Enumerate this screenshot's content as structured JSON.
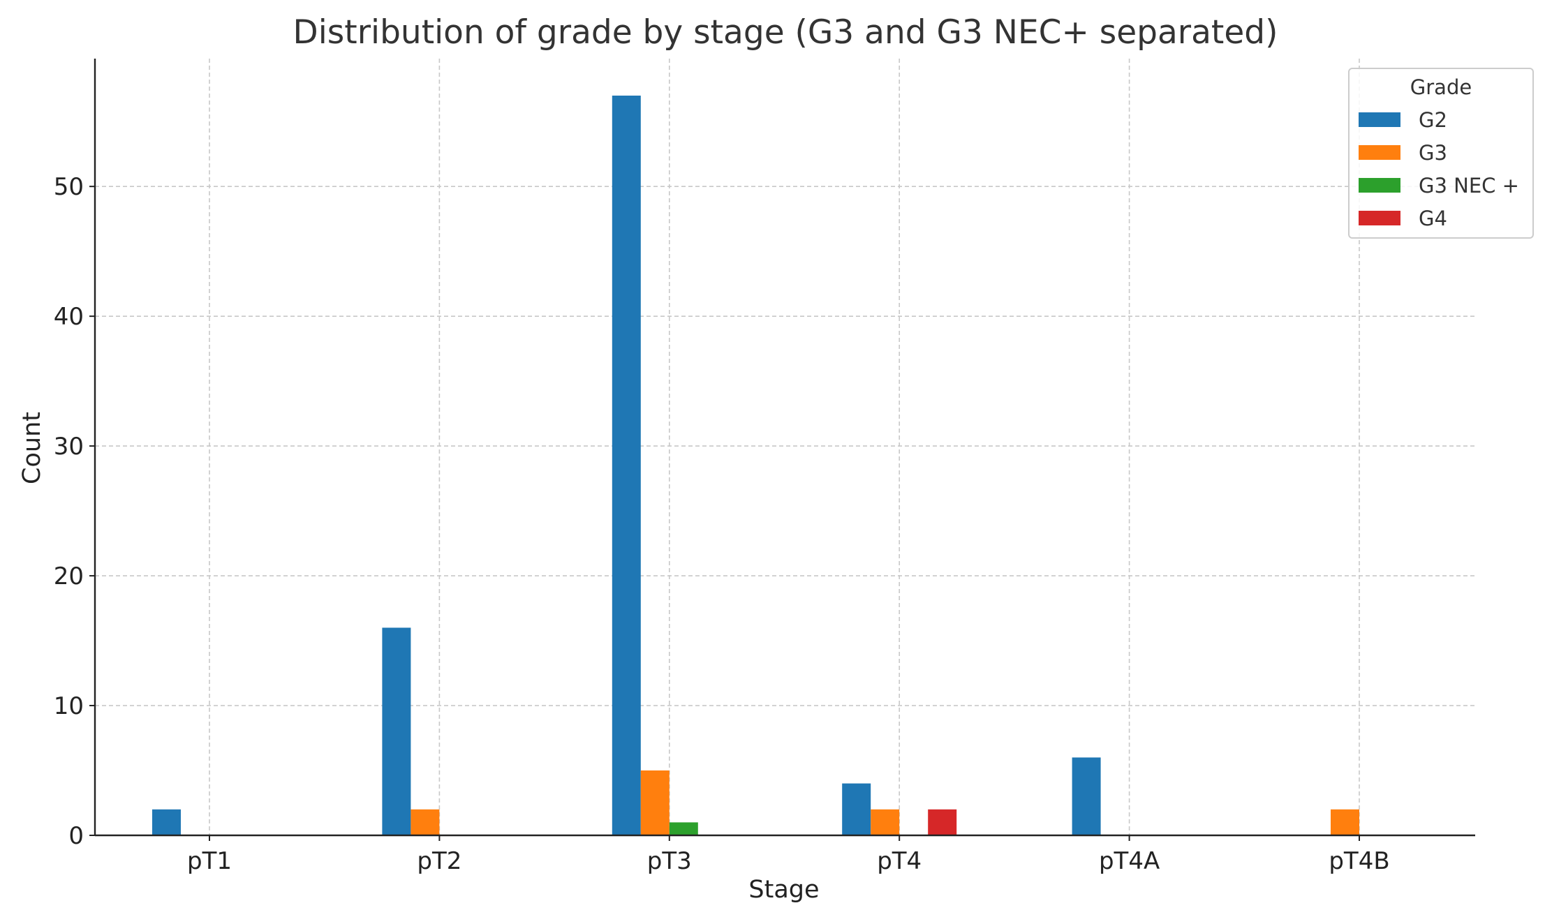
{
  "chart_data": {
    "type": "bar",
    "title": "Distribution of grade by stage (G3 and G3 NEC+ separated)",
    "xlabel": "Stage",
    "ylabel": "Count",
    "categories": [
      "pT1",
      "pT2",
      "pT3",
      "pT4",
      "pT4A",
      "pT4B"
    ],
    "series": [
      {
        "name": "G2",
        "color": "#1f77b4",
        "values": [
          2,
          16,
          57,
          4,
          6,
          0
        ]
      },
      {
        "name": "G3",
        "color": "#ff7f0e",
        "values": [
          0,
          2,
          5,
          2,
          0,
          2
        ]
      },
      {
        "name": "G3 NEC +",
        "color": "#2ca02c",
        "values": [
          0,
          0,
          1,
          0,
          0,
          0
        ]
      },
      {
        "name": "G4",
        "color": "#d62728",
        "values": [
          0,
          0,
          0,
          2,
          0,
          0
        ]
      }
    ],
    "yticks": [
      0,
      10,
      20,
      30,
      40,
      50
    ],
    "ylim": [
      0,
      59.85
    ],
    "grid": true,
    "legend": {
      "title": "Grade",
      "position": "top-right"
    }
  }
}
